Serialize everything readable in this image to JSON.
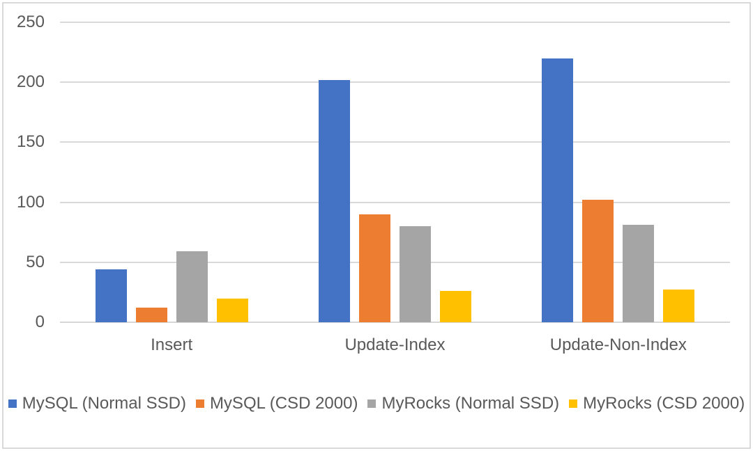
{
  "figure": {
    "background": "#FFFFFF",
    "border_color": "#D9D9D9",
    "text_color": "#595959",
    "gridline_color": "#D9D9D9"
  },
  "chart_data": {
    "type": "bar",
    "title": "",
    "categories": [
      "Insert",
      "Update-Index",
      "Update-Non-Index"
    ],
    "series": [
      {
        "name": "MySQL (Normal SSD)",
        "color": "#4472C4",
        "values": [
          44,
          202,
          220
        ]
      },
      {
        "name": "MySQL (CSD 2000)",
        "color": "#ED7D31",
        "values": [
          12,
          90,
          102
        ]
      },
      {
        "name": "MyRocks (Normal SSD)",
        "color": "#A5A5A5",
        "values": [
          59,
          80,
          81
        ]
      },
      {
        "name": "MyRocks (CSD 2000)",
        "color": "#FFC000",
        "values": [
          20,
          26,
          27
        ]
      }
    ],
    "xlabel": "",
    "ylabel": "",
    "ylim": [
      0,
      250
    ],
    "yticks": [
      0,
      50,
      100,
      150,
      200,
      250
    ],
    "grid": true,
    "legend_position": "bottom"
  }
}
